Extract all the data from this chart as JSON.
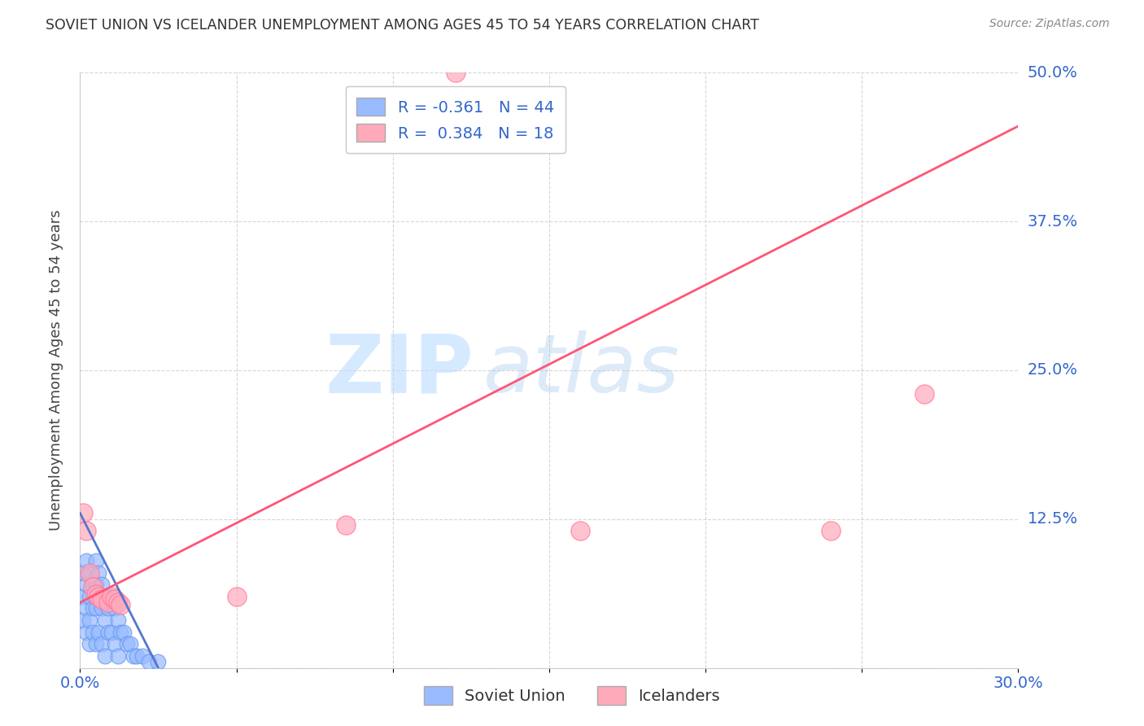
{
  "title": "SOVIET UNION VS ICELANDER UNEMPLOYMENT AMONG AGES 45 TO 54 YEARS CORRELATION CHART",
  "source": "Source: ZipAtlas.com",
  "ylabel": "Unemployment Among Ages 45 to 54 years",
  "xlim": [
    0.0,
    0.3
  ],
  "ylim": [
    0.0,
    0.5
  ],
  "soviet_R": -0.361,
  "soviet_N": 44,
  "icelander_R": 0.384,
  "icelander_N": 18,
  "soviet_color": "#99BBFF",
  "soviet_edge_color": "#6699EE",
  "icelander_color": "#FFAABB",
  "icelander_edge_color": "#FF7799",
  "soviet_line_color": "#5577CC",
  "icelander_line_color": "#FF5577",
  "watermark_zip": "ZIP",
  "watermark_atlas": "atlas",
  "soviet_x": [
    0.001,
    0.001,
    0.001,
    0.002,
    0.002,
    0.002,
    0.002,
    0.003,
    0.003,
    0.003,
    0.003,
    0.004,
    0.004,
    0.004,
    0.005,
    0.005,
    0.005,
    0.005,
    0.006,
    0.006,
    0.006,
    0.007,
    0.007,
    0.007,
    0.008,
    0.008,
    0.008,
    0.009,
    0.009,
    0.01,
    0.01,
    0.011,
    0.011,
    0.012,
    0.012,
    0.013,
    0.014,
    0.015,
    0.016,
    0.017,
    0.018,
    0.02,
    0.022,
    0.025
  ],
  "soviet_y": [
    0.08,
    0.06,
    0.04,
    0.09,
    0.07,
    0.05,
    0.03,
    0.08,
    0.06,
    0.04,
    0.02,
    0.07,
    0.05,
    0.03,
    0.09,
    0.07,
    0.05,
    0.02,
    0.08,
    0.06,
    0.03,
    0.07,
    0.05,
    0.02,
    0.06,
    0.04,
    0.01,
    0.05,
    0.03,
    0.06,
    0.03,
    0.05,
    0.02,
    0.04,
    0.01,
    0.03,
    0.03,
    0.02,
    0.02,
    0.01,
    0.01,
    0.01,
    0.005,
    0.005
  ],
  "soviet_line_x": [
    0.0,
    0.025
  ],
  "soviet_line_y": [
    0.13,
    0.0
  ],
  "icelander_x": [
    0.001,
    0.002,
    0.003,
    0.004,
    0.005,
    0.006,
    0.007,
    0.009,
    0.01,
    0.011,
    0.012,
    0.013,
    0.05,
    0.085,
    0.12,
    0.16,
    0.24,
    0.27
  ],
  "icelander_y": [
    0.13,
    0.115,
    0.08,
    0.068,
    0.062,
    0.06,
    0.058,
    0.055,
    0.06,
    0.058,
    0.055,
    0.053,
    0.06,
    0.12,
    0.5,
    0.115,
    0.115,
    0.23
  ],
  "icelander_line_x": [
    0.0,
    0.3
  ],
  "icelander_line_y": [
    0.055,
    0.455
  ]
}
